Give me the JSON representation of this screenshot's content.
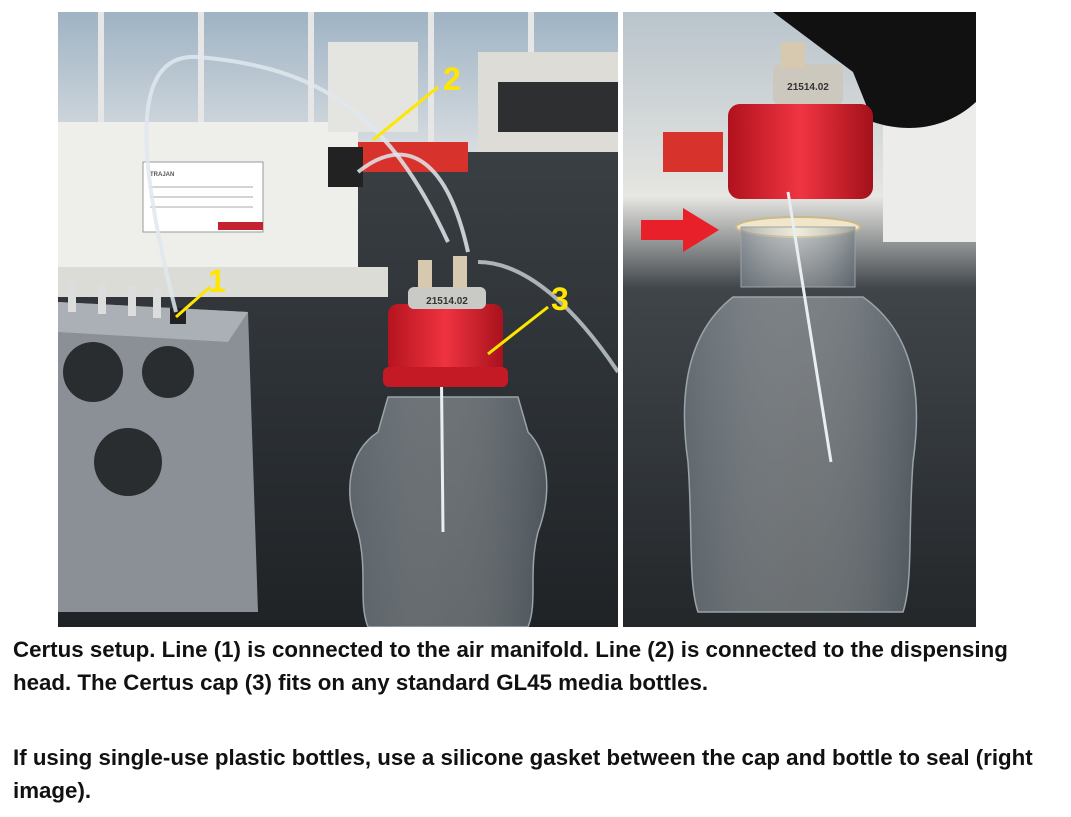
{
  "figure": {
    "left_photo": {
      "callouts": [
        {
          "number": "1"
        },
        {
          "number": "2"
        },
        {
          "number": "3"
        }
      ],
      "cap_engraving": "21514.02",
      "label_brand": "TRAJAN"
    },
    "right_photo": {
      "cap_engraving": "21514.02"
    },
    "colors": {
      "callout": "#ffe600",
      "cap": "#e6202e",
      "arrow": "#e8202a",
      "background_dark": "#2b2f33"
    }
  },
  "caption": {
    "paragraph_1": "Certus setup. Line (1) is connected to the air manifold. Line (2) is connected to the dispensing head.  The Certus cap (3) fits on any standard GL45 media bottles.",
    "paragraph_2": "If using single-use plastic bottles, use a silicone gasket between the cap and bottle to seal (right image)."
  }
}
